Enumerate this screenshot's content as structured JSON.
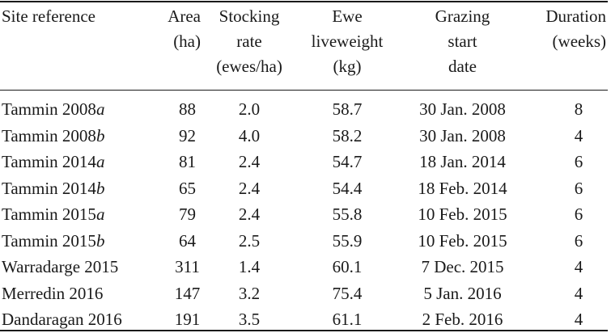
{
  "table": {
    "headers": {
      "site": [
        "Site reference"
      ],
      "area": [
        "Area",
        "(ha)"
      ],
      "stocking": [
        "Stocking",
        "rate",
        "(ewes/ha)"
      ],
      "liveweight": [
        "Ewe",
        "liveweight",
        "(kg)"
      ],
      "start_date": [
        "Grazing",
        "start",
        "date"
      ],
      "duration": [
        "Duration",
        "(weeks)"
      ]
    },
    "rows": [
      {
        "site": "Tammin 2008",
        "suffix": "a",
        "area": "88",
        "stocking": "2.0",
        "liveweight": "58.7",
        "start_date": "30 Jan. 2008",
        "duration": "8"
      },
      {
        "site": "Tammin 2008",
        "suffix": "b",
        "area": "92",
        "stocking": "4.0",
        "liveweight": "58.2",
        "start_date": "30 Jan. 2008",
        "duration": "4"
      },
      {
        "site": "Tammin 2014",
        "suffix": "a",
        "area": "81",
        "stocking": "2.4",
        "liveweight": "54.7",
        "start_date": "18 Jan. 2014",
        "duration": "6"
      },
      {
        "site": "Tammin 2014",
        "suffix": "b",
        "area": "65",
        "stocking": "2.4",
        "liveweight": "54.4",
        "start_date": "18 Feb. 2014",
        "duration": "6"
      },
      {
        "site": "Tammin 2015",
        "suffix": "a",
        "area": "79",
        "stocking": "2.4",
        "liveweight": "55.8",
        "start_date": "10 Feb. 2015",
        "duration": "6"
      },
      {
        "site": "Tammin 2015",
        "suffix": "b",
        "area": "64",
        "stocking": "2.5",
        "liveweight": "55.9",
        "start_date": "10 Feb. 2015",
        "duration": "6"
      },
      {
        "site": "Warradarge 2015",
        "suffix": "",
        "area": "311",
        "stocking": "1.4",
        "liveweight": "60.1",
        "start_date": "7 Dec. 2015",
        "duration": "4"
      },
      {
        "site": "Merredin 2016",
        "suffix": "",
        "area": "147",
        "stocking": "3.2",
        "liveweight": "75.4",
        "start_date": "5 Jan. 2016",
        "duration": "4"
      },
      {
        "site": "Dandaragan 2016",
        "suffix": "",
        "area": "191",
        "stocking": "3.5",
        "liveweight": "61.1",
        "start_date": "2 Feb. 2016",
        "duration": "4"
      }
    ]
  }
}
